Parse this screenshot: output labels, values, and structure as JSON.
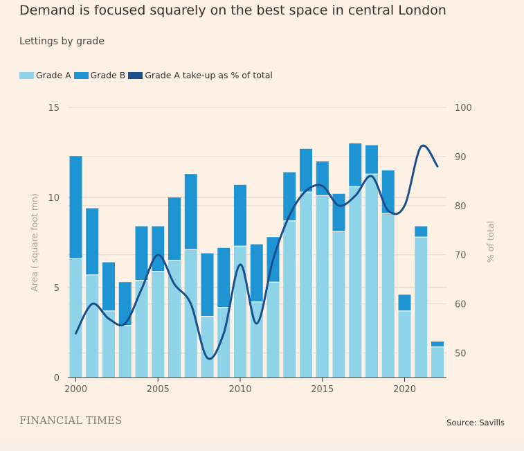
{
  "header": {
    "title": "Demand is focused squarely on the best space in central London",
    "subtitle": "Lettings by grade"
  },
  "legend": [
    {
      "label": "Grade A",
      "color": "#8fd3e8"
    },
    {
      "label": "Grade B",
      "color": "#1e95d2"
    },
    {
      "label": "Grade A take-up as % of total",
      "color": "#1a4f8b"
    }
  ],
  "footer": {
    "brand": "FINANCIAL TIMES",
    "source": "Source: Savills"
  },
  "chart_data": {
    "type": "bar",
    "stacked": true,
    "title": "Lettings by grade",
    "years": [
      2000,
      2001,
      2002,
      2003,
      2004,
      2005,
      2006,
      2007,
      2008,
      2009,
      2010,
      2011,
      2012,
      2013,
      2014,
      2015,
      2016,
      2017,
      2018,
      2019,
      2020,
      2021,
      2022
    ],
    "series": [
      {
        "name": "Grade A",
        "color": "#8fd3e8",
        "values": [
          6.6,
          5.7,
          3.7,
          2.9,
          5.4,
          5.9,
          6.5,
          7.1,
          3.4,
          3.9,
          7.3,
          4.2,
          5.3,
          8.7,
          10.3,
          10.1,
          8.1,
          10.6,
          11.3,
          9.1,
          3.7,
          7.8,
          1.7
        ]
      },
      {
        "name": "Grade B",
        "color": "#1e95d2",
        "values": [
          5.7,
          3.7,
          2.7,
          2.4,
          3.0,
          2.5,
          3.5,
          4.2,
          3.5,
          3.3,
          3.4,
          3.2,
          2.5,
          2.7,
          2.4,
          1.9,
          2.1,
          2.4,
          1.6,
          2.4,
          0.9,
          0.6,
          0.3
        ]
      },
      {
        "name": "Grade A take-up as % of total",
        "color": "#1a4f8b",
        "axis": "right",
        "values": [
          54,
          60,
          57,
          56,
          63,
          70,
          64,
          60,
          49,
          54,
          68,
          56,
          69,
          78,
          83,
          84,
          80,
          82,
          86,
          79,
          80,
          92,
          88
        ]
      }
    ],
    "left_axis": {
      "label": "Area ( square foot mn)",
      "ylim": [
        0,
        15
      ],
      "ticks": [
        0,
        5,
        10,
        15
      ]
    },
    "right_axis": {
      "label": "% of total",
      "ylim": [
        45,
        100
      ],
      "ticks": [
        50,
        60,
        70,
        80,
        90,
        100
      ]
    },
    "x_ticks": [
      2000,
      2005,
      2010,
      2015,
      2020
    ],
    "grid": true
  }
}
